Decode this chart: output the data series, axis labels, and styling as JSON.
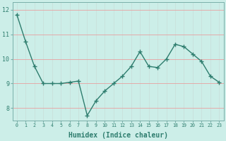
{
  "x": [
    0,
    1,
    2,
    3,
    4,
    5,
    6,
    7,
    8,
    9,
    10,
    11,
    12,
    13,
    14,
    15,
    16,
    17,
    18,
    19,
    20,
    21,
    22,
    23
  ],
  "y": [
    11.8,
    10.7,
    9.7,
    9.0,
    9.0,
    9.0,
    9.05,
    9.1,
    7.7,
    8.3,
    8.7,
    9.0,
    9.3,
    9.7,
    10.3,
    9.7,
    9.65,
    10.0,
    10.6,
    10.5,
    10.2,
    9.9,
    9.3,
    9.05
  ],
  "line_color": "#2e7d6e",
  "marker": "+",
  "marker_size": 4,
  "bg_color": "#cceee8",
  "grid_color_v": "#c8ddd9",
  "grid_color_h": "#e8a0a0",
  "tick_label_color": "#2e7d6e",
  "xlabel": "Humidex (Indice chaleur)",
  "xlabel_fontsize": 7,
  "ylim": [
    7.5,
    12.3
  ],
  "yticks": [
    8,
    9,
    10,
    11,
    12
  ],
  "xticks": [
    0,
    1,
    2,
    3,
    4,
    5,
    6,
    7,
    8,
    9,
    10,
    11,
    12,
    13,
    14,
    15,
    16,
    17,
    18,
    19,
    20,
    21,
    22,
    23
  ],
  "line_width": 1.0,
  "spine_color": "#7ab0aa"
}
